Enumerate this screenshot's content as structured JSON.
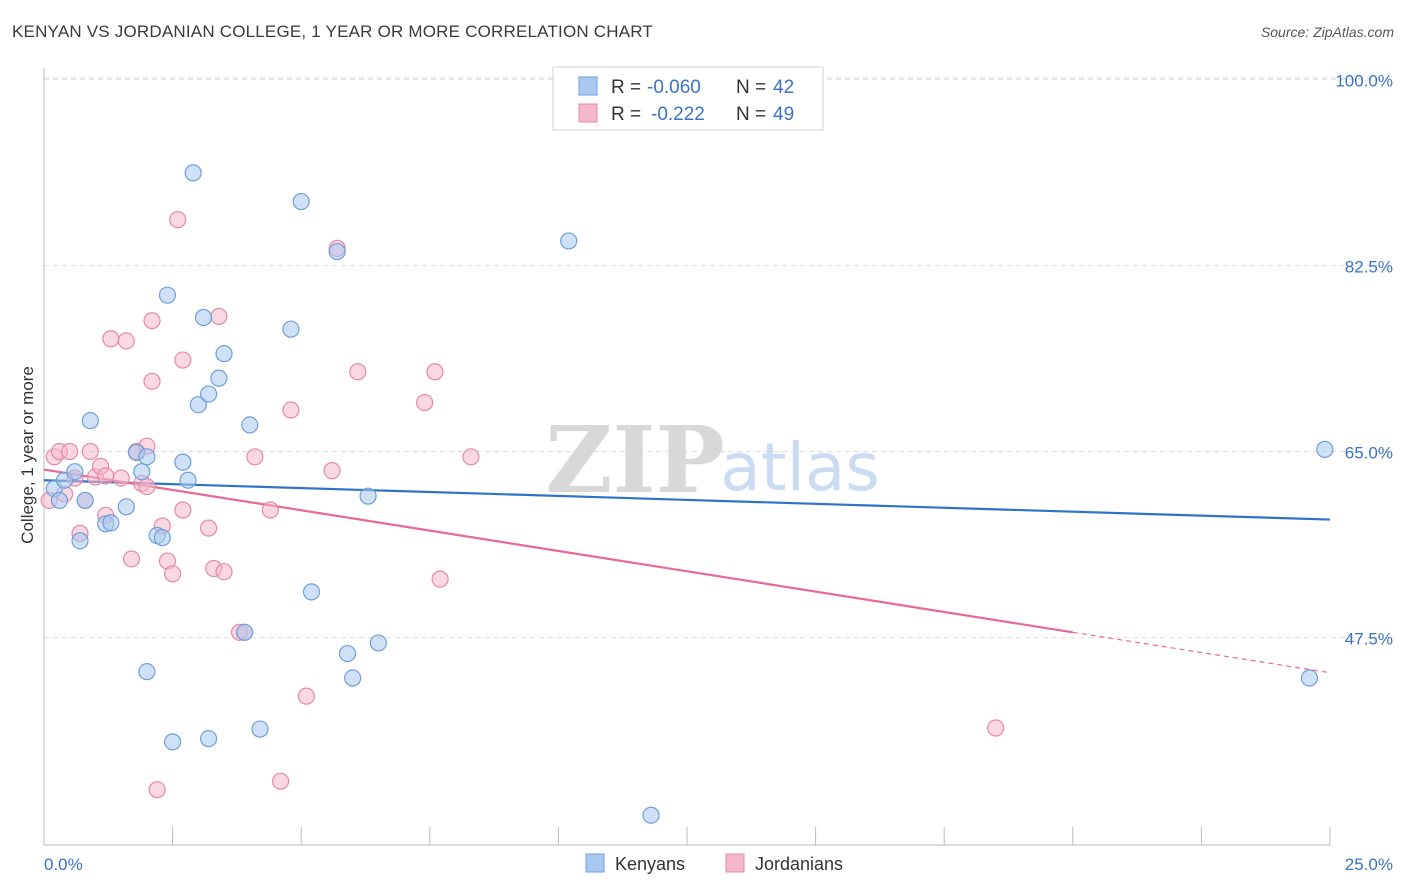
{
  "header": {
    "title": "KENYAN VS JORDANIAN COLLEGE, 1 YEAR OR MORE CORRELATION CHART",
    "source": "Source: ZipAtlas.com"
  },
  "watermark": {
    "zip": "ZIP",
    "atlas": "atlas"
  },
  "legend_top": {
    "rows": [
      {
        "r_label": "R =",
        "r_value": "-0.060",
        "n_label": "N =",
        "n_value": "42",
        "color": "#a8c8f0"
      },
      {
        "r_label": "R =",
        "r_value": "-0.222",
        "n_label": "N =",
        "n_value": "49",
        "color": "#f5b8cb"
      }
    ]
  },
  "legend_bottom": {
    "items": [
      "Kenyans",
      "Jordanians"
    ]
  },
  "colors": {
    "kenyan_fill": "#a8c8f0",
    "kenyan_stroke": "#6f9fd8",
    "kenyan_line": "#2e73c8",
    "jordanian_fill": "#f5b8cb",
    "jordanian_stroke": "#e48aa8",
    "jordanian_line": "#e8689a",
    "axis_text": "#3b72c6",
    "grid": "#dddddd"
  },
  "chart_data": {
    "type": "scatter",
    "title": "KENYAN VS JORDANIAN COLLEGE, 1 YEAR OR MORE CORRELATION CHART",
    "xlabel": "",
    "ylabel": "College, 1 year or more",
    "xlim": [
      0,
      25
    ],
    "ylim": [
      28,
      102
    ],
    "x_tick_labels": [
      "0.0%",
      "25.0%"
    ],
    "y_ticks": [
      100,
      82.5,
      65,
      47.5
    ],
    "y_tick_labels": [
      "100.0%",
      "82.5%",
      "65.0%",
      "47.5%"
    ],
    "grid": true,
    "legend_position": "top-center",
    "series": [
      {
        "name": "Kenyans",
        "r": -0.06,
        "n": 42,
        "trend": {
          "x": [
            0,
            25
          ],
          "y": [
            62.3,
            58.6
          ]
        },
        "points": [
          [
            0.2,
            61.5
          ],
          [
            0.3,
            60.4
          ],
          [
            0.4,
            62.3
          ],
          [
            0.6,
            63.1
          ],
          [
            0.7,
            56.6
          ],
          [
            0.8,
            60.4
          ],
          [
            0.9,
            67.9
          ],
          [
            1.2,
            58.2
          ],
          [
            1.3,
            58.3
          ],
          [
            1.6,
            59.8
          ],
          [
            1.8,
            64.9
          ],
          [
            1.9,
            63.1
          ],
          [
            2.0,
            64.5
          ],
          [
            2.0,
            44.3
          ],
          [
            2.2,
            57.1
          ],
          [
            2.3,
            56.9
          ],
          [
            2.4,
            79.7
          ],
          [
            2.5,
            37.7
          ],
          [
            2.7,
            64.0
          ],
          [
            2.8,
            62.3
          ],
          [
            2.9,
            91.2
          ],
          [
            3.0,
            69.4
          ],
          [
            3.1,
            77.6
          ],
          [
            3.2,
            70.4
          ],
          [
            3.2,
            38.0
          ],
          [
            3.4,
            71.9
          ],
          [
            3.5,
            74.2
          ],
          [
            3.9,
            48.0
          ],
          [
            4.0,
            67.5
          ],
          [
            4.2,
            38.9
          ],
          [
            4.8,
            76.5
          ],
          [
            5.0,
            88.5
          ],
          [
            5.2,
            51.8
          ],
          [
            5.7,
            83.8
          ],
          [
            5.9,
            46.0
          ],
          [
            6.0,
            43.7
          ],
          [
            6.3,
            60.8
          ],
          [
            6.5,
            47.0
          ],
          [
            10.2,
            84.8
          ],
          [
            11.8,
            30.8
          ],
          [
            24.6,
            43.7
          ],
          [
            24.9,
            65.2
          ]
        ]
      },
      {
        "name": "Jordanians",
        "r": -0.222,
        "n": 49,
        "trend": {
          "x": [
            0,
            20
          ],
          "y": [
            63.3,
            48.0
          ]
        },
        "trend_dashed": {
          "x": [
            20,
            25
          ],
          "y": [
            48.0,
            44.2
          ]
        },
        "points": [
          [
            0.1,
            60.4
          ],
          [
            0.2,
            64.5
          ],
          [
            0.3,
            65.0
          ],
          [
            0.4,
            61.0
          ],
          [
            0.5,
            65.0
          ],
          [
            0.6,
            62.5
          ],
          [
            0.7,
            57.3
          ],
          [
            0.8,
            60.4
          ],
          [
            0.9,
            65.0
          ],
          [
            1.0,
            62.6
          ],
          [
            1.1,
            63.6
          ],
          [
            1.2,
            59.0
          ],
          [
            1.2,
            62.7
          ],
          [
            1.3,
            75.6
          ],
          [
            1.5,
            62.5
          ],
          [
            1.6,
            75.4
          ],
          [
            1.7,
            54.9
          ],
          [
            1.8,
            65.0
          ],
          [
            1.9,
            62.0
          ],
          [
            2.0,
            65.5
          ],
          [
            2.0,
            61.7
          ],
          [
            2.1,
            71.6
          ],
          [
            2.1,
            77.3
          ],
          [
            2.2,
            33.2
          ],
          [
            2.3,
            58.0
          ],
          [
            2.4,
            54.7
          ],
          [
            2.5,
            53.5
          ],
          [
            2.6,
            86.8
          ],
          [
            2.7,
            73.6
          ],
          [
            2.7,
            59.5
          ],
          [
            3.2,
            57.8
          ],
          [
            3.3,
            54.0
          ],
          [
            3.4,
            77.7
          ],
          [
            3.5,
            53.7
          ],
          [
            3.8,
            48.0
          ],
          [
            3.9,
            48.0
          ],
          [
            4.1,
            64.5
          ],
          [
            4.4,
            59.5
          ],
          [
            4.6,
            34.0
          ],
          [
            4.8,
            68.9
          ],
          [
            5.1,
            42.0
          ],
          [
            5.6,
            63.2
          ],
          [
            5.7,
            84.1
          ],
          [
            6.1,
            72.5
          ],
          [
            7.4,
            69.6
          ],
          [
            7.6,
            72.5
          ],
          [
            7.7,
            53.0
          ],
          [
            8.3,
            64.5
          ],
          [
            18.5,
            39.0
          ]
        ]
      }
    ]
  }
}
